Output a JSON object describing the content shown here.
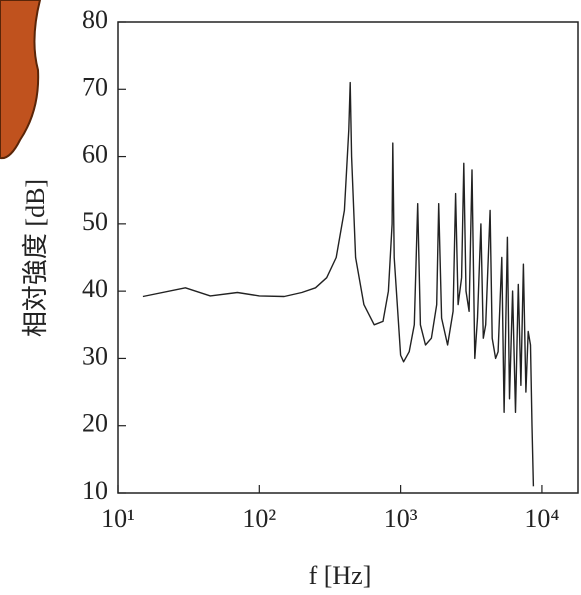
{
  "chart_data": {
    "type": "line",
    "xscale": "log",
    "xlabel": "f [Hz]",
    "ylabel": "相対強度 [dB]",
    "xlim": [
      10,
      18000
    ],
    "ylim": [
      10,
      80
    ],
    "xticks": [
      {
        "value": 10,
        "label": "10¹"
      },
      {
        "value": 100,
        "label": "10²"
      },
      {
        "value": 1000,
        "label": "10³"
      },
      {
        "value": 10000,
        "label": "10⁴"
      }
    ],
    "yticks": [
      10,
      20,
      30,
      40,
      50,
      60,
      70,
      80
    ],
    "color": "#222222",
    "x": [
      15,
      30,
      45,
      70,
      100,
      150,
      200,
      250,
      300,
      350,
      400,
      430,
      440,
      450,
      480,
      550,
      650,
      750,
      820,
      870,
      880,
      900,
      1000,
      1050,
      1150,
      1250,
      1320,
      1380,
      1500,
      1650,
      1800,
      1860,
      1950,
      2150,
      2350,
      2450,
      2550,
      2700,
      2800,
      2900,
      3050,
      3200,
      3350,
      3500,
      3700,
      3850,
      4000,
      4300,
      4450,
      4700,
      4900,
      5200,
      5400,
      5700,
      5900,
      6200,
      6500,
      6800,
      7100,
      7400,
      7700,
      8000,
      8300,
      8500,
      8700
    ],
    "values": [
      39.2,
      40.5,
      39.3,
      39.8,
      39.3,
      39.2,
      39.8,
      40.5,
      42,
      45,
      52,
      64,
      71,
      60,
      45,
      38,
      35,
      35.5,
      40,
      50,
      62,
      45,
      30.5,
      29.5,
      31,
      35,
      53,
      35,
      32,
      33,
      38,
      53,
      36,
      32,
      37,
      54.5,
      38,
      42,
      59,
      40,
      37,
      58,
      30,
      36,
      50,
      33,
      35,
      52,
      33,
      30,
      31,
      45,
      22,
      48,
      24,
      40,
      22,
      41,
      26,
      44,
      25,
      34,
      32,
      20,
      11
    ]
  }
}
